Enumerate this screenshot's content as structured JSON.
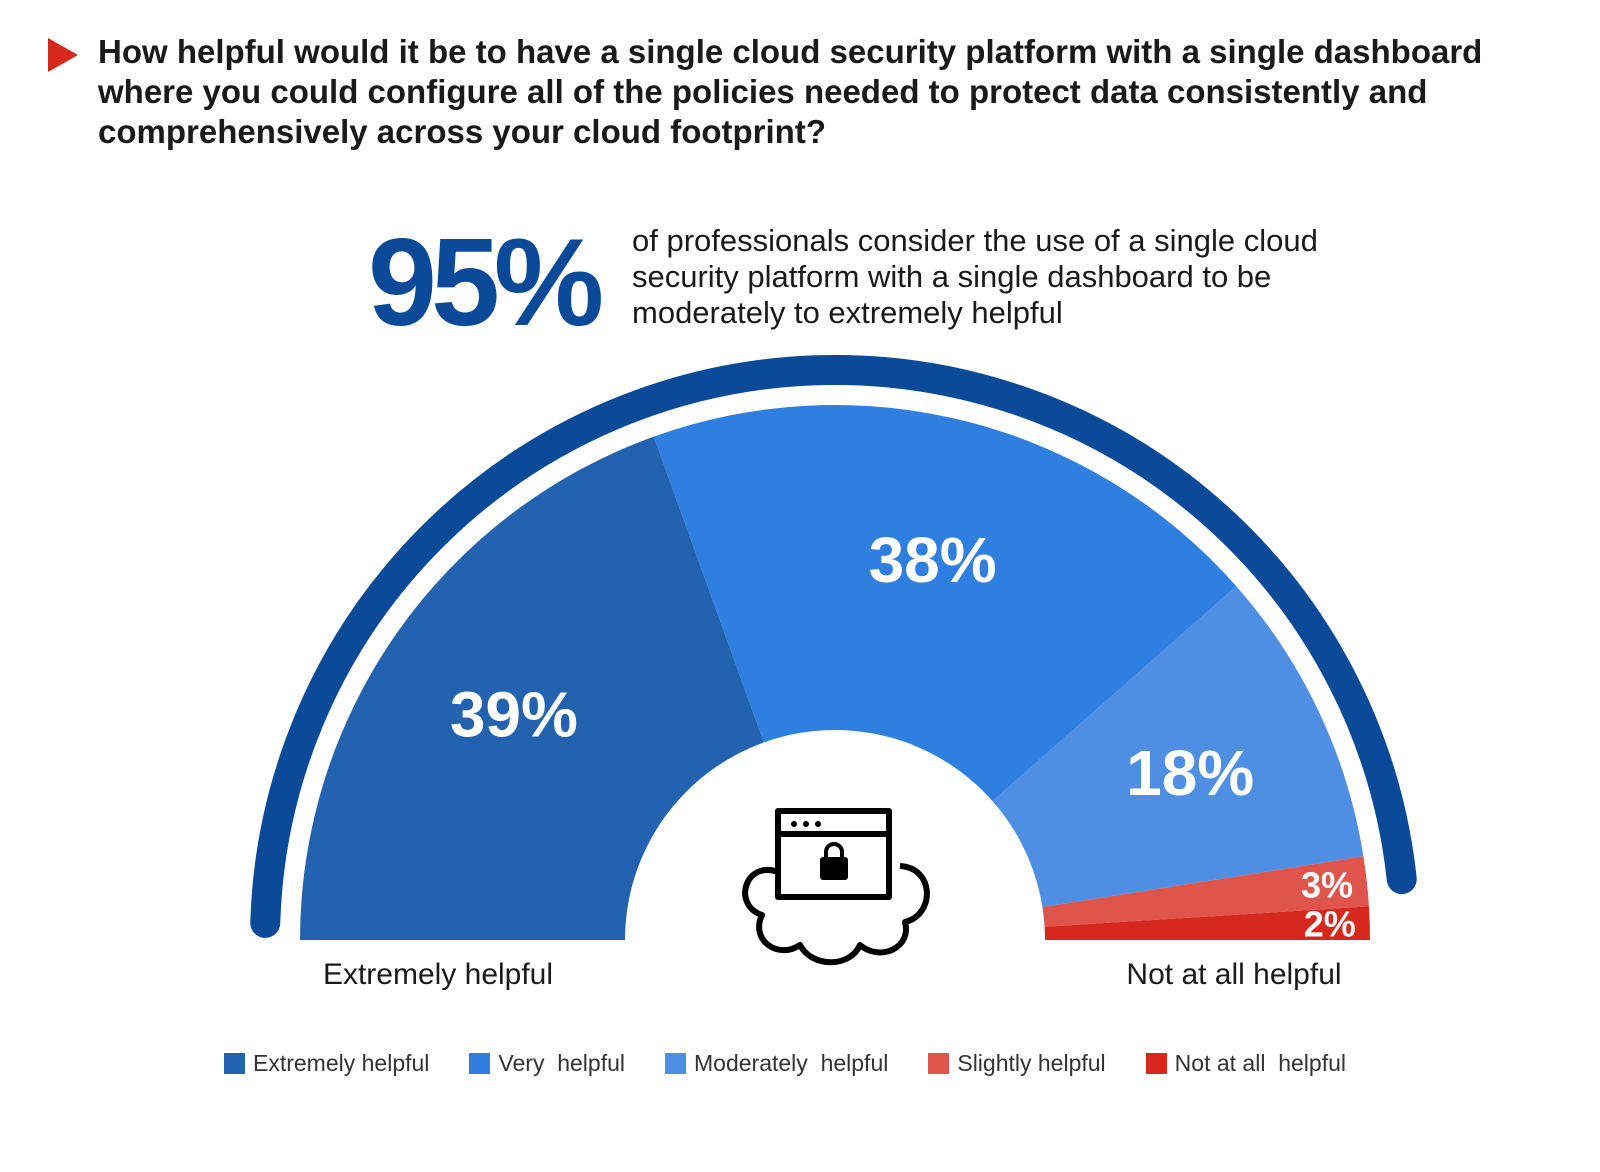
{
  "question": "How helpful would it be to have a single cloud security platform with a single dashboard where you could configure all of the policies needed to protect data consistently and comprehensively across your cloud footprint?",
  "headline": {
    "value": "95%",
    "description": "of professionals consider the use of a single cloud security platform with a single dashboard to be moderately to extremely helpful"
  },
  "end_labels": {
    "left": "Extremely helpful",
    "right": "Not at all helpful"
  },
  "colors": {
    "accent": "#d7281e",
    "arc": "#0b4a98",
    "headline": "#0b4a98"
  },
  "center_icon": "cloud-lock-icon",
  "chart_data": {
    "type": "pie",
    "variant": "half-donut",
    "categories": [
      "Extremely helpful",
      "Very  helpful",
      "Moderately  helpful",
      "Slightly helpful",
      "Not at all  helpful"
    ],
    "values": [
      39,
      38,
      18,
      3,
      2
    ],
    "data_labels": [
      "39%",
      "38%",
      "18%",
      "3%",
      "2%"
    ],
    "colors": [
      "#2262ae",
      "#2f7fe0",
      "#4f8fe3",
      "#e0554b",
      "#d7281e"
    ],
    "legend_position": "bottom"
  }
}
